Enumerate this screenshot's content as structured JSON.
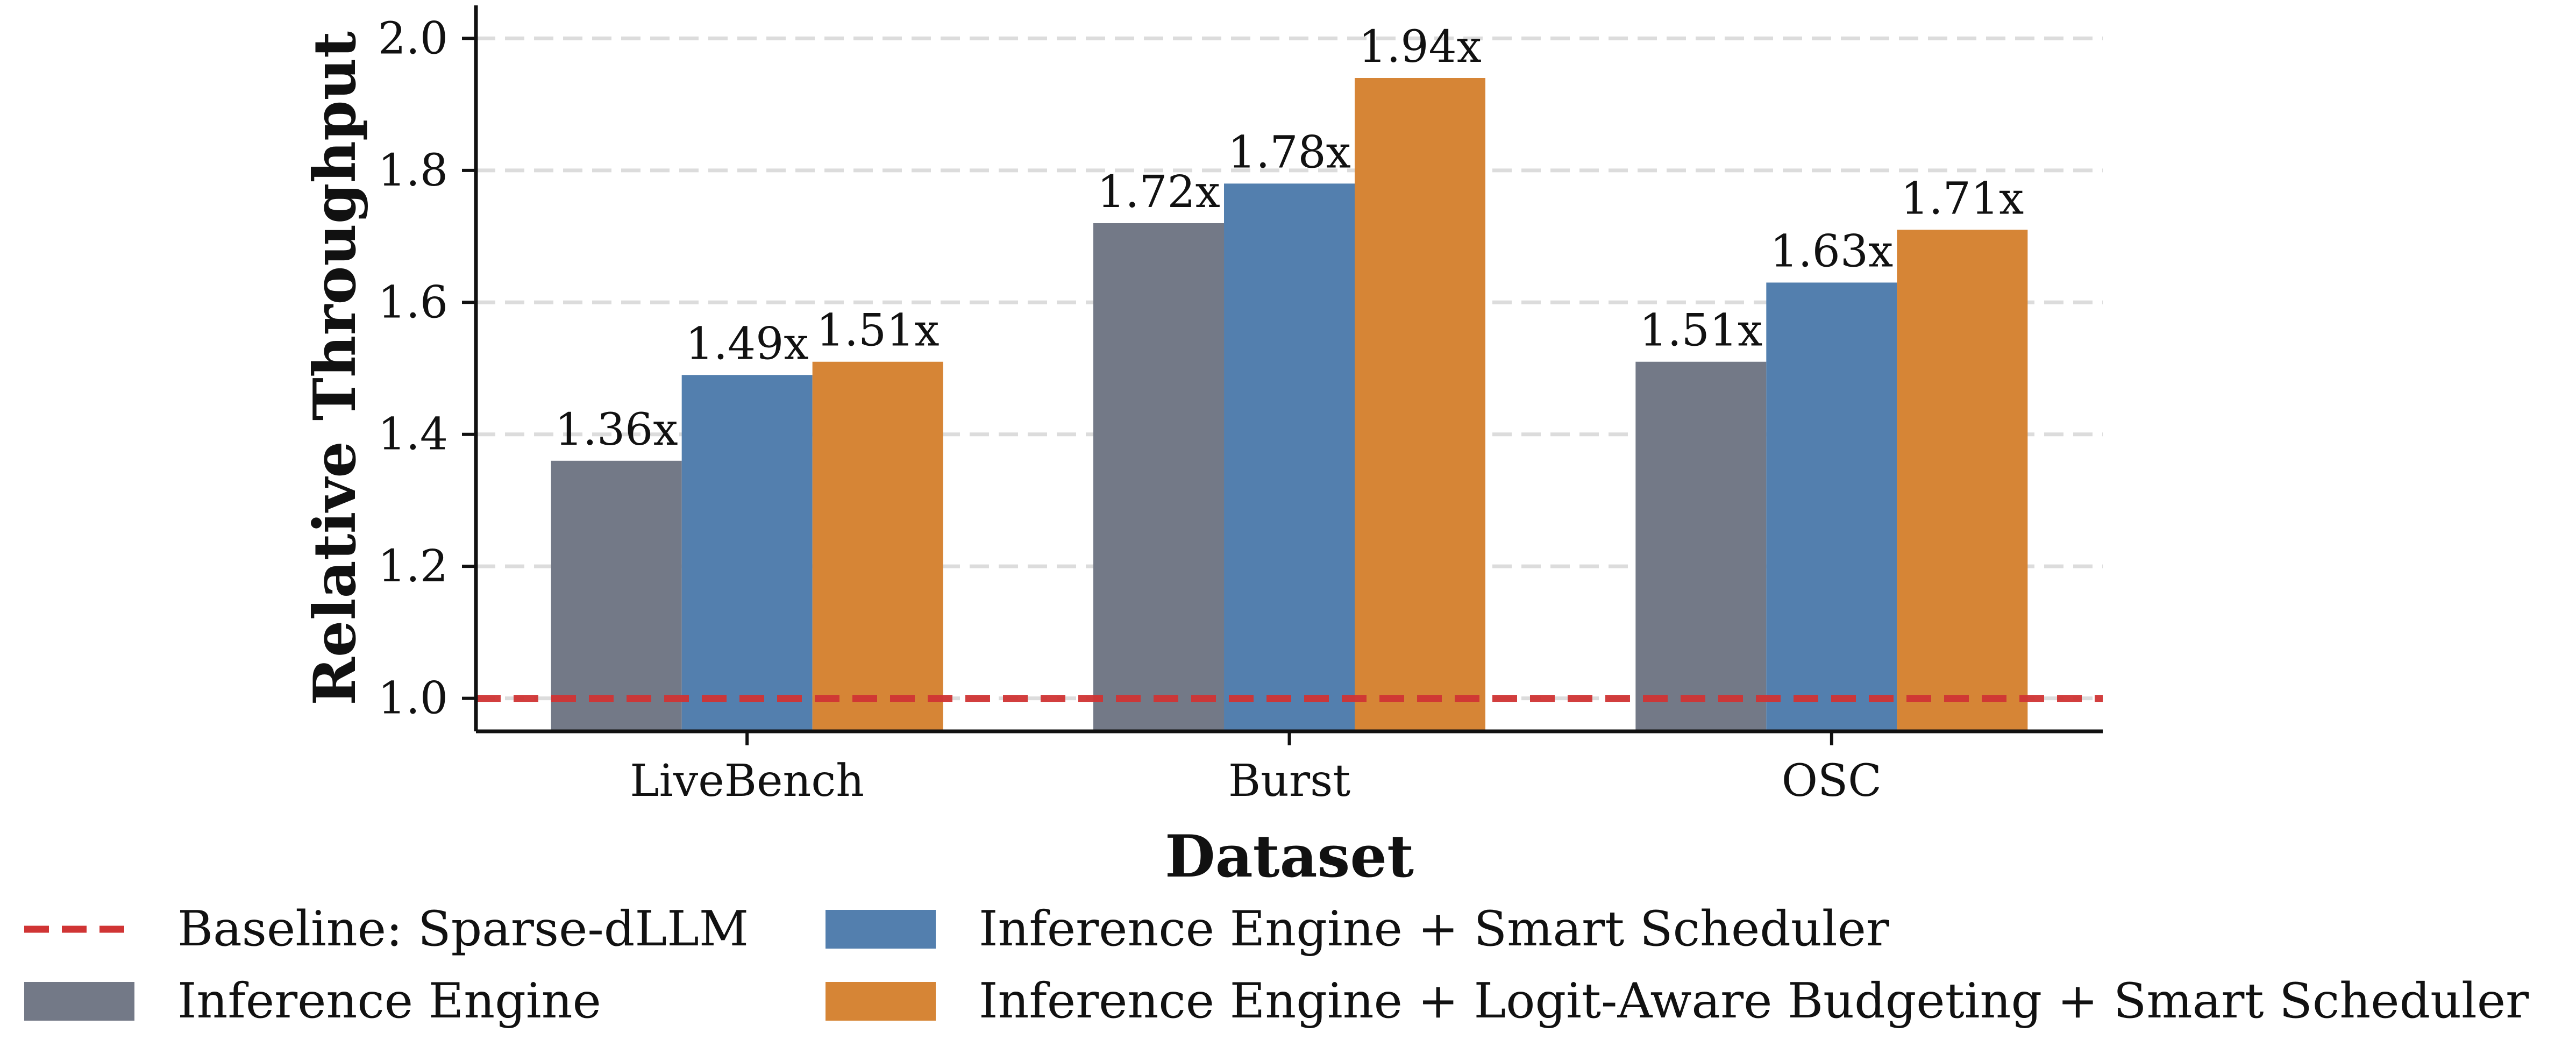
{
  "chart_data": {
    "type": "bar",
    "title": "",
    "xlabel": "Dataset",
    "ylabel": "Relative Throughput",
    "categories": [
      "LiveBench",
      "Burst",
      "OSC"
    ],
    "series": [
      {
        "name": "Inference Engine",
        "color": "#737987",
        "values": [
          1.36,
          1.72,
          1.51
        ],
        "labels": [
          "1.36x",
          "1.72x",
          "1.51x"
        ]
      },
      {
        "name": "Inference Engine + Smart Scheduler",
        "color": "#537fae",
        "values": [
          1.49,
          1.78,
          1.63
        ],
        "labels": [
          "1.49x",
          "1.78x",
          "1.63x"
        ]
      },
      {
        "name": "Inference Engine + Logit-Aware Budgeting + Smart Scheduler",
        "color": "#d68536",
        "values": [
          1.51,
          1.94,
          1.71
        ],
        "labels": [
          "1.51x",
          "1.94x",
          "1.71x"
        ]
      }
    ],
    "baseline": {
      "name": "Baseline: Sparse-dLLM",
      "value": 1.0,
      "color": "#d03434",
      "style": "dashed"
    },
    "ylim": [
      0.95,
      2.05
    ],
    "yticks": [
      "1.0",
      "1.2",
      "1.4",
      "1.6",
      "1.8",
      "2.0"
    ],
    "ytick_values": [
      1.0,
      1.2,
      1.4,
      1.6,
      1.8,
      2.0
    ],
    "grid": "horizontal-dashed",
    "legend_position": "bottom",
    "legend_order": [
      "baseline",
      0,
      1,
      2
    ]
  }
}
